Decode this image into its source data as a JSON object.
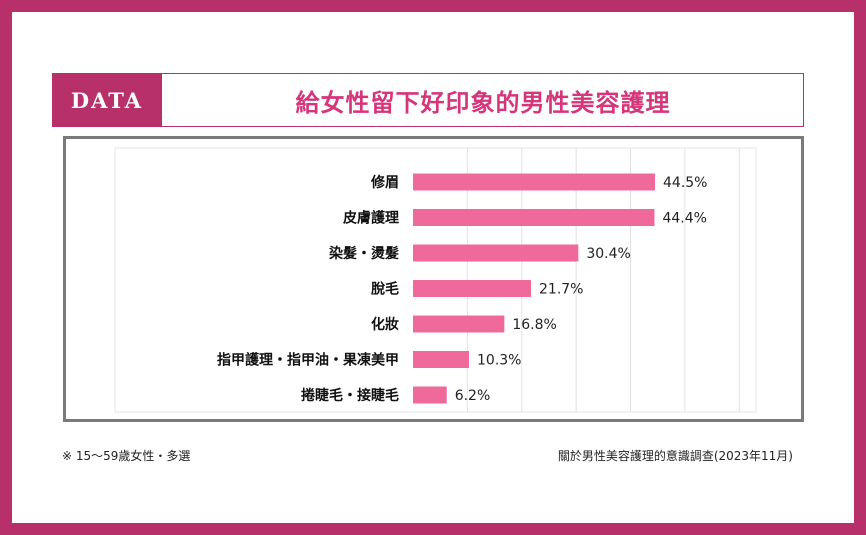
{
  "badge": "DATA",
  "title": "給女性留下好印象的男性美容護理",
  "note": "※ 15～59歲女性・多選",
  "source": "關於男性美容護理的意識調查(2023年11月)",
  "colors": {
    "frame": "#b8306a",
    "title": "#d6357a",
    "bar": "#ef6a9b",
    "box_border": "#7a7a7a"
  },
  "chart_data": {
    "type": "bar",
    "orientation": "horizontal",
    "categories": [
      "修眉",
      "皮膚護理",
      "染髮・燙髮",
      "脫毛",
      "化妝",
      "指甲護理・指甲油・果凍美甲",
      "捲睫毛・接睫毛"
    ],
    "values": [
      44.5,
      44.4,
      30.4,
      21.7,
      16.8,
      10.3,
      6.2
    ],
    "labels": [
      "44.5%",
      "44.4%",
      "30.4%",
      "21.7%",
      "16.8%",
      "10.3%",
      "6.2%"
    ],
    "xlim": [
      0,
      60
    ],
    "grid": true,
    "title": "",
    "xlabel": "",
    "ylabel": ""
  }
}
